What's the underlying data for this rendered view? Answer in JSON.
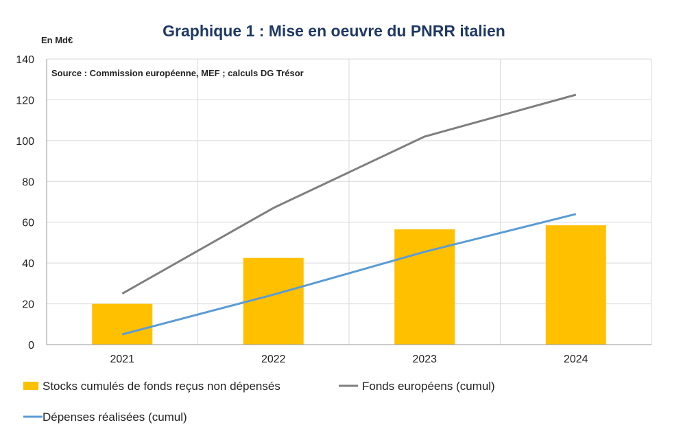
{
  "chart_data": {
    "type": "bar",
    "title": "Graphique 1 : Mise en oeuvre du PNRR italien",
    "unit_label": "En Md€",
    "source": "Source : Commission européenne, MEF ; calculs DG Trésor",
    "categories": [
      "2021",
      "2022",
      "2023",
      "2024"
    ],
    "ylim": [
      0,
      140
    ],
    "yticks": [
      0,
      20,
      40,
      60,
      80,
      100,
      120,
      140
    ],
    "grid": true,
    "legend_position": "bottom",
    "series": [
      {
        "name": "Stocks cumulés de fonds reçus non dépensés",
        "kind": "bar",
        "color": "#ffc000",
        "values": [
          20,
          42.5,
          56.5,
          58.5
        ]
      },
      {
        "name": "Fonds européens (cumul)",
        "kind": "line",
        "color": "#7f7f7f",
        "values": [
          25,
          67,
          102,
          122.5
        ]
      },
      {
        "name": "Dépenses réalisées (cumul)",
        "kind": "line",
        "color": "#5b9bd5",
        "values": [
          5,
          24.5,
          45.5,
          64
        ]
      }
    ]
  }
}
